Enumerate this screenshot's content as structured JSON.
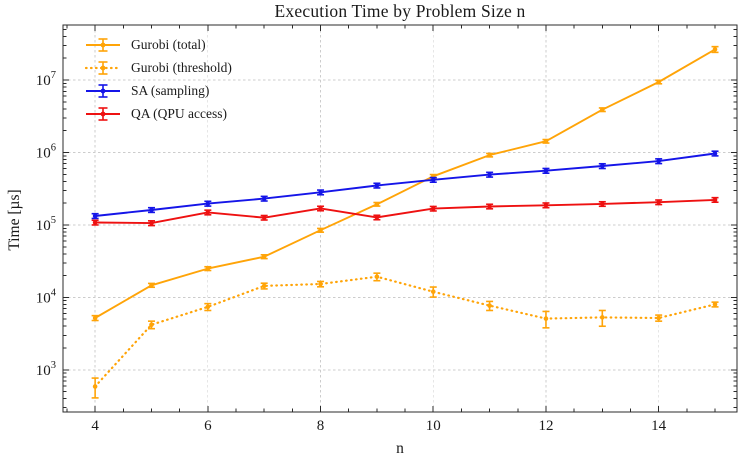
{
  "title": "Execution Time by Problem Size n",
  "chart_data": {
    "type": "line",
    "title": "Execution Time by Problem Size n",
    "xlabel": "n",
    "ylabel": "Time [µs]",
    "yscale": "log",
    "grid": true,
    "legend_position": "upper left",
    "xlim": [
      3.43,
      15.39
    ],
    "ylim": [
      262,
      57500000
    ],
    "xticks": [
      4,
      6,
      8,
      10,
      12,
      14
    ],
    "yticks_exponents": [
      3,
      4,
      5,
      6,
      7
    ],
    "x": [
      4,
      5,
      6,
      7,
      8,
      9,
      10,
      11,
      12,
      13,
      14,
      15
    ],
    "series": [
      {
        "name": "Gurobi (total)",
        "color": "#FFA408",
        "style": "solid",
        "values": [
          5200,
          14700,
          25000,
          36500,
          84500,
          193000,
          470000,
          920000,
          1430000,
          3900000,
          9400000,
          26500000
        ],
        "yerr": [
          400,
          900,
          1500,
          2200,
          5000,
          11000,
          26000,
          50000,
          80000,
          220000,
          520000,
          2400000
        ]
      },
      {
        "name": "Gurobi (threshold)",
        "color": "#FFA408",
        "style": "dotted",
        "values": [
          590,
          4200,
          7400,
          14400,
          15300,
          19300,
          12000,
          7700,
          5100,
          5300,
          5200,
          8000
        ],
        "yerr": [
          180,
          500,
          800,
          1300,
          1300,
          2300,
          1900,
          1100,
          1300,
          1300,
          500,
          600
        ]
      },
      {
        "name": "SA (sampling)",
        "color": "#1515E8",
        "style": "solid",
        "values": [
          133000,
          161000,
          197000,
          231000,
          282000,
          350000,
          420000,
          495000,
          560000,
          650000,
          760000,
          970000
        ],
        "yerr": [
          10000,
          12000,
          15000,
          17000,
          21000,
          26000,
          31000,
          37000,
          42000,
          49000,
          57000,
          72000
        ]
      },
      {
        "name": "QA (QPU access)",
        "color": "#EE1111",
        "style": "solid",
        "values": [
          108000,
          106000,
          149000,
          126000,
          169000,
          127000,
          168000,
          180000,
          187000,
          195000,
          206000,
          222000
        ],
        "yerr": [
          8000,
          8000,
          11000,
          9000,
          12000,
          9000,
          12000,
          13000,
          14000,
          14000,
          15000,
          16000
        ]
      }
    ],
    "colors": {
      "grid": "#cccccc",
      "axis": "#2b2b2b",
      "text": "#1a1a1a"
    }
  }
}
